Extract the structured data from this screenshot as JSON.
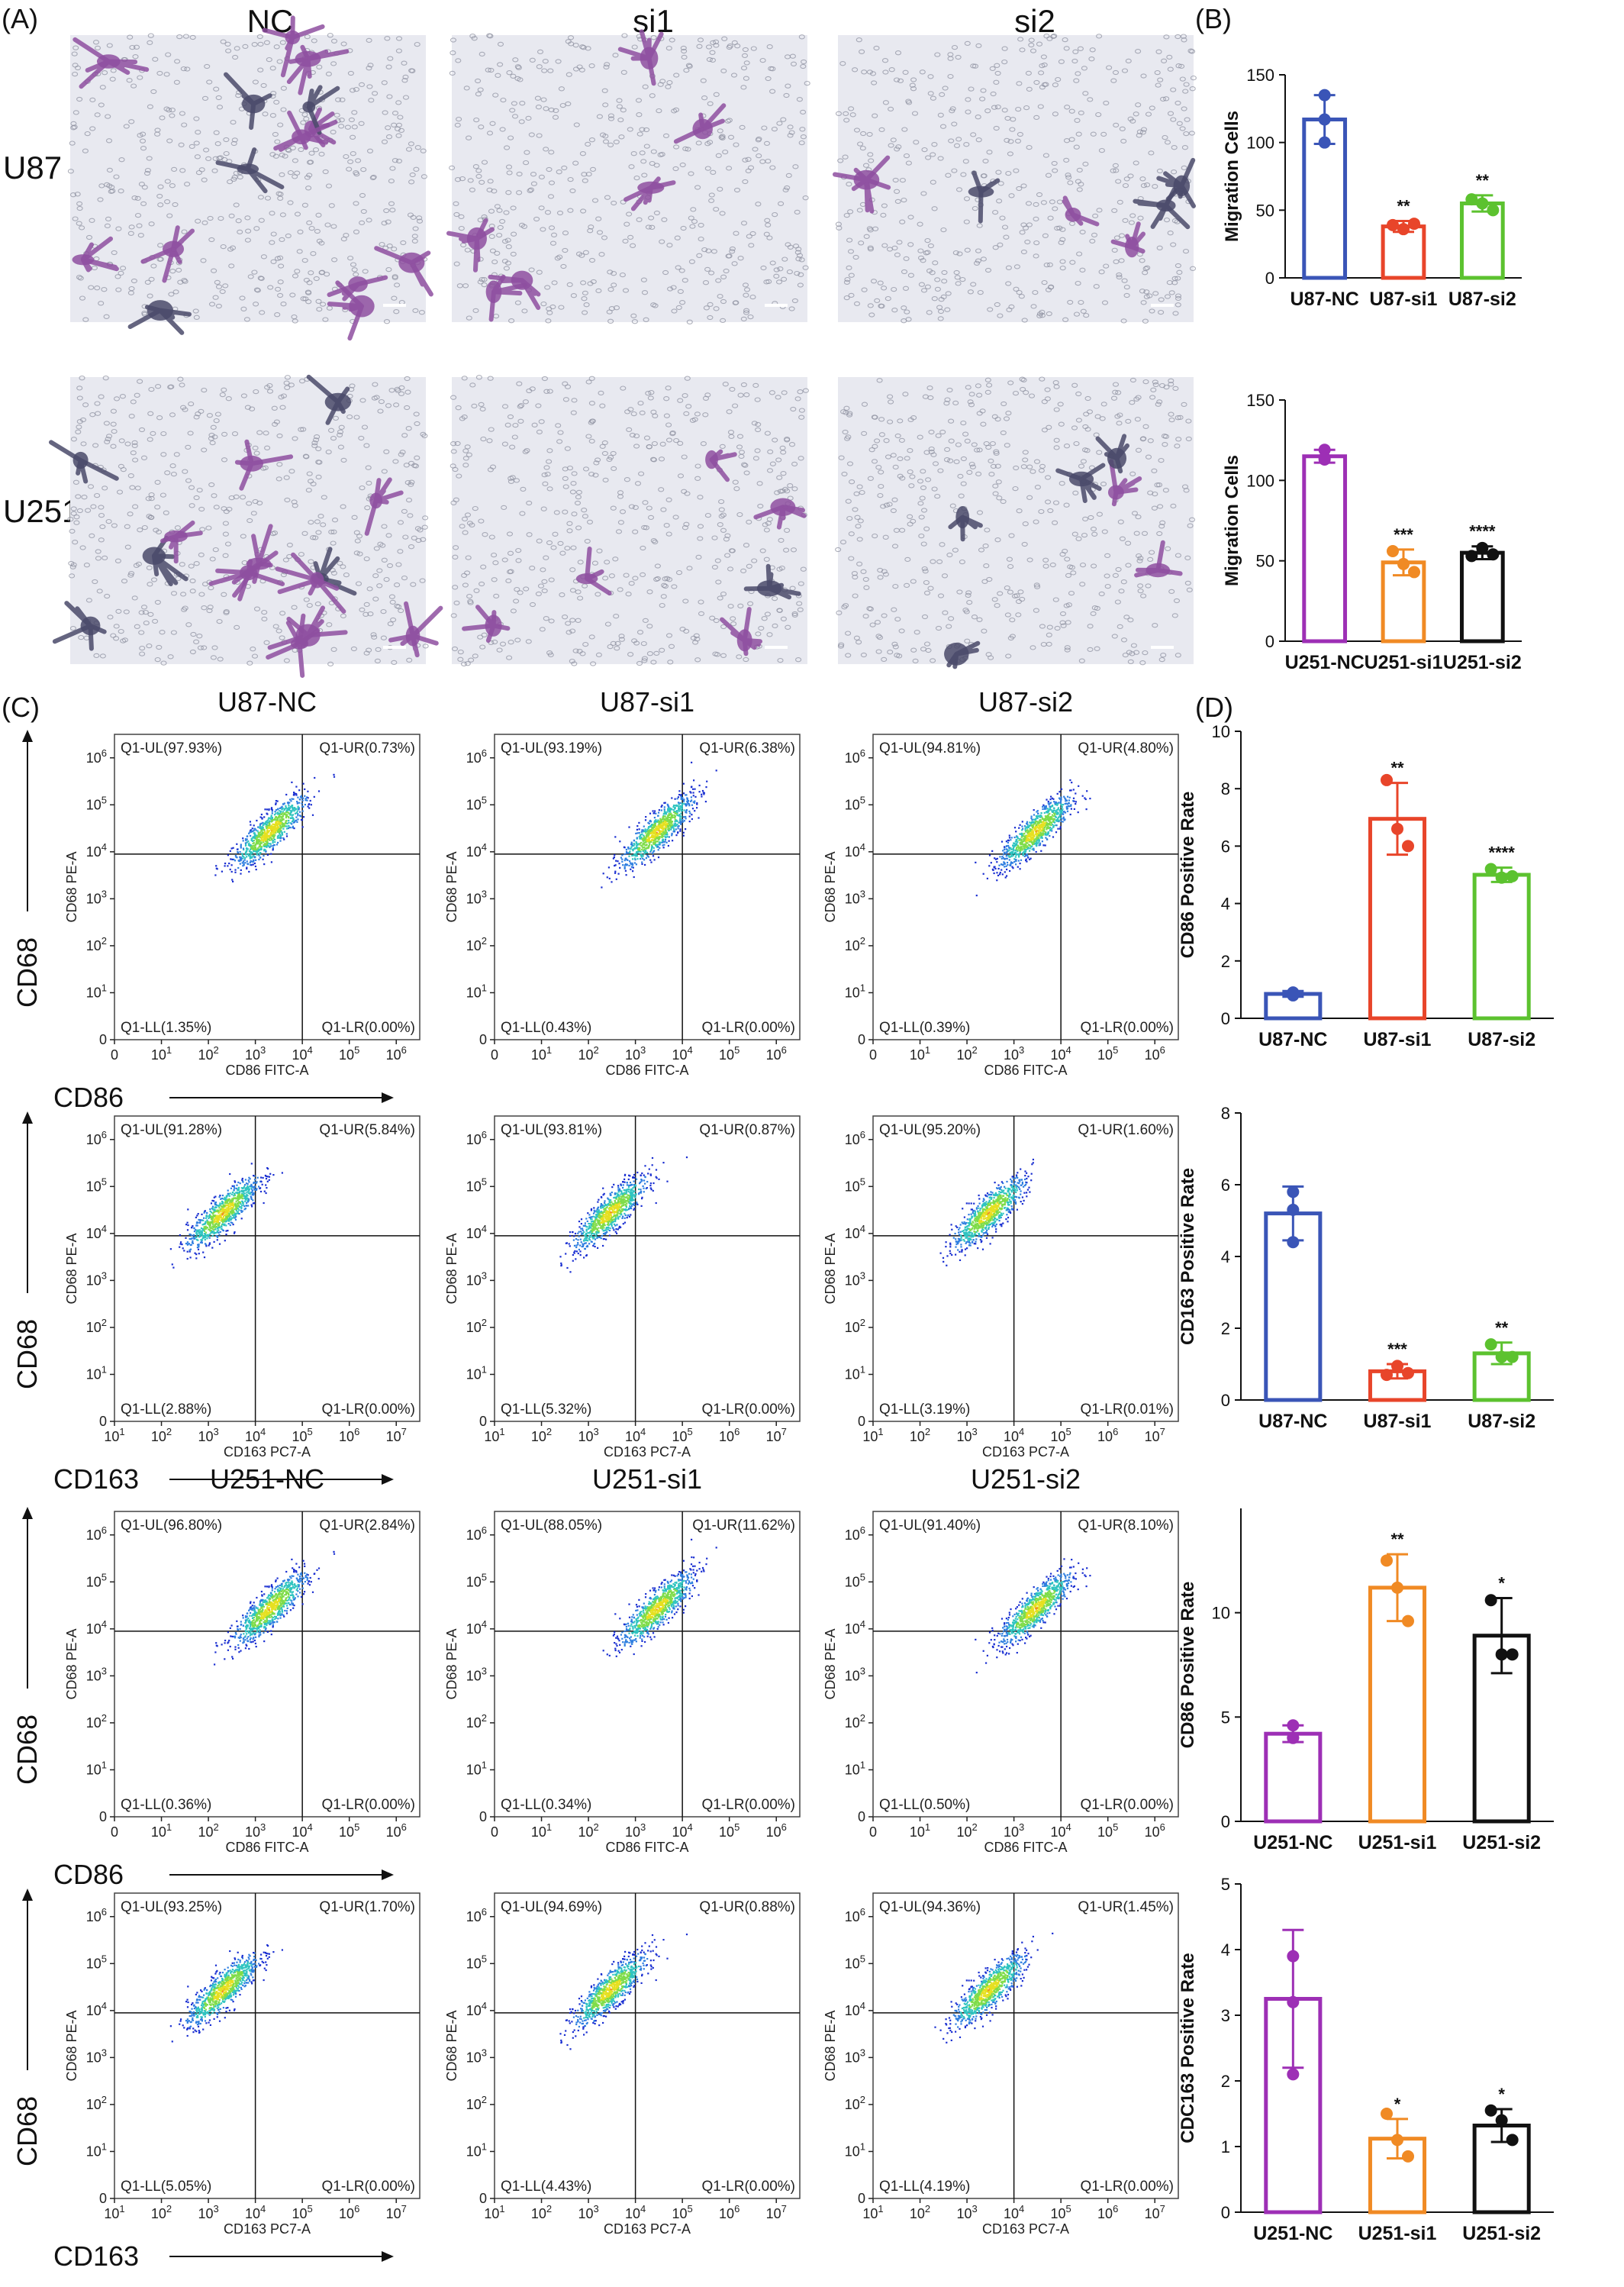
{
  "panel_labels": {
    "a": "(A)",
    "b": "(B)",
    "c": "(C)",
    "d": "(D)"
  },
  "panel_a": {
    "columns": [
      "NC",
      "si1",
      "si2"
    ],
    "rows": [
      "U87",
      "U251"
    ]
  },
  "flow": {
    "group_titles": [
      [
        "U87-NC",
        "U87-si1",
        "U87-si2"
      ],
      [
        "U251-NC",
        "U251-si1",
        "U251-si2"
      ]
    ],
    "y_marker": "CD68",
    "y_channel": "CD68 PE-A",
    "blocks": [
      {
        "marker": "CD86",
        "channel": "CD86 FITC-A",
        "xmin_exp": 0,
        "xmax_exp": 6,
        "quads": [
          {
            "ul": "Q1-UL(97.93%)",
            "ur": "Q1-UR(0.73%)",
            "ll": "Q1-LL(1.35%)",
            "lr": "Q1-LR(0.00%)"
          },
          {
            "ul": "Q1-UL(93.19%)",
            "ur": "Q1-UR(6.38%)",
            "ll": "Q1-LL(0.43%)",
            "lr": "Q1-LR(0.00%)"
          },
          {
            "ul": "Q1-UL(94.81%)",
            "ur": "Q1-UR(4.80%)",
            "ll": "Q1-LL(0.39%)",
            "lr": "Q1-LR(0.00%)"
          }
        ]
      },
      {
        "marker": "CD163",
        "channel": "CD163 PC7-A",
        "xmin_exp": 1,
        "xmax_exp": 7,
        "quads": [
          {
            "ul": "Q1-UL(91.28%)",
            "ur": "Q1-UR(5.84%)",
            "ll": "Q1-LL(2.88%)",
            "lr": "Q1-LR(0.00%)"
          },
          {
            "ul": "Q1-UL(93.81%)",
            "ur": "Q1-UR(0.87%)",
            "ll": "Q1-LL(5.32%)",
            "lr": "Q1-LR(0.00%)"
          },
          {
            "ul": "Q1-UL(95.20%)",
            "ur": "Q1-UR(1.60%)",
            "ll": "Q1-LL(3.19%)",
            "lr": "Q1-LR(0.01%)"
          }
        ]
      },
      {
        "marker": "CD86",
        "channel": "CD86 FITC-A",
        "xmin_exp": 0,
        "xmax_exp": 6,
        "quads": [
          {
            "ul": "Q1-UL(96.80%)",
            "ur": "Q1-UR(2.84%)",
            "ll": "Q1-LL(0.36%)",
            "lr": "Q1-LR(0.00%)"
          },
          {
            "ul": "Q1-UL(88.05%)",
            "ur": "Q1-UR(11.62%)",
            "ll": "Q1-LL(0.34%)",
            "lr": "Q1-LR(0.00%)"
          },
          {
            "ul": "Q1-UL(91.40%)",
            "ur": "Q1-UR(8.10%)",
            "ll": "Q1-LL(0.50%)",
            "lr": "Q1-LR(0.00%)"
          }
        ]
      },
      {
        "marker": "CD163",
        "channel": "CD163 PC7-A",
        "xmin_exp": 1,
        "xmax_exp": 7,
        "quads": [
          {
            "ul": "Q1-UL(93.25%)",
            "ur": "Q1-UR(1.70%)",
            "ll": "Q1-LL(5.05%)",
            "lr": "Q1-LR(0.00%)"
          },
          {
            "ul": "Q1-UL(94.69%)",
            "ur": "Q1-UR(0.88%)",
            "ll": "Q1-LL(4.43%)",
            "lr": "Q1-LR(0.00%)"
          },
          {
            "ul": "Q1-UL(94.36%)",
            "ur": "Q1-UR(1.45%)",
            "ll": "Q1-LL(4.19%)",
            "lr": "Q1-LR(0.00%)"
          }
        ]
      }
    ]
  },
  "chart_data": [
    {
      "type": "bar",
      "ylabel": "Migration Cells",
      "ylim": [
        0,
        150
      ],
      "yticks": [
        0,
        50,
        100,
        150
      ],
      "categories": [
        "U87-NC",
        "U87-si1",
        "U87-si2"
      ],
      "values": [
        117,
        38,
        55
      ],
      "errors": [
        18,
        4,
        6
      ],
      "points": [
        [
          135,
          117,
          100
        ],
        [
          39,
          36,
          40
        ],
        [
          58,
          55,
          50
        ]
      ],
      "sig": [
        "",
        "**",
        "**"
      ],
      "colors": [
        "#3a55b7",
        "#e8452a",
        "#5cc22f"
      ]
    },
    {
      "type": "bar",
      "ylabel": "Migration Cells",
      "ylim": [
        0,
        150
      ],
      "yticks": [
        0,
        50,
        100,
        150
      ],
      "categories": [
        "U251-NC",
        "U251-si1",
        "U251-si2"
      ],
      "values": [
        115,
        49,
        55
      ],
      "errors": [
        4,
        8,
        4
      ],
      "points": [
        [
          119,
          114,
          113
        ],
        [
          56,
          48,
          43
        ],
        [
          53,
          58,
          54
        ]
      ],
      "sig": [
        "",
        "***",
        "****"
      ],
      "colors": [
        "#9d2fb5",
        "#f08a24",
        "#111111"
      ]
    },
    {
      "type": "bar",
      "ylabel": "CD86 Positive Rate",
      "ylim": [
        0,
        10
      ],
      "yticks": [
        0,
        2,
        4,
        6,
        8,
        10
      ],
      "categories": [
        "U87-NC",
        "U87-si1",
        "U87-si2"
      ],
      "values": [
        0.85,
        6.95,
        5.0
      ],
      "errors": [
        0.1,
        1.25,
        0.25
      ],
      "points": [
        [
          0.8,
          0.85,
          0.9
        ],
        [
          8.3,
          6.6,
          6.0
        ],
        [
          5.2,
          4.9,
          4.95
        ]
      ],
      "sig": [
        "",
        "**",
        "****"
      ],
      "colors": [
        "#3a55b7",
        "#e8452a",
        "#5cc22f"
      ]
    },
    {
      "type": "bar",
      "ylabel": "CD163 Positive Rate",
      "ylim": [
        0,
        8
      ],
      "yticks": [
        0,
        2,
        4,
        6,
        8
      ],
      "categories": [
        "U87-NC",
        "U87-si1",
        "U87-si2"
      ],
      "values": [
        5.2,
        0.8,
        1.3
      ],
      "errors": [
        0.75,
        0.2,
        0.3
      ],
      "points": [
        [
          5.8,
          4.4,
          5.3
        ],
        [
          0.7,
          0.95,
          0.75
        ],
        [
          1.55,
          1.2,
          1.2
        ]
      ],
      "sig": [
        "",
        "***",
        "**"
      ],
      "colors": [
        "#3a55b7",
        "#e8452a",
        "#5cc22f"
      ]
    },
    {
      "type": "bar",
      "ylabel": "CD86 Positive Rate",
      "ylim": [
        0,
        15
      ],
      "yticks": [
        0,
        5,
        10
      ],
      "categories": [
        "U251-NC",
        "U251-si1",
        "U251-si2"
      ],
      "values": [
        4.2,
        11.2,
        8.9
      ],
      "errors": [
        0.4,
        1.6,
        1.8
      ],
      "points": [
        [
          4.6,
          4.0,
          4.0
        ],
        [
          12.5,
          11.2,
          9.6
        ],
        [
          10.6,
          8.0,
          8.0
        ]
      ],
      "sig": [
        "",
        "**",
        "*"
      ],
      "colors": [
        "#9d2fb5",
        "#f08a24",
        "#111111"
      ]
    },
    {
      "type": "bar",
      "ylabel": "CDC163 Positive Rate",
      "ylim": [
        0,
        5
      ],
      "yticks": [
        0,
        1,
        2,
        3,
        4,
        5
      ],
      "categories": [
        "U251-NC",
        "U251-si1",
        "U251-si2"
      ],
      "values": [
        3.25,
        1.12,
        1.32
      ],
      "errors": [
        1.05,
        0.3,
        0.25
      ],
      "points": [
        [
          3.9,
          3.2,
          2.1
        ],
        [
          1.5,
          1.1,
          0.85
        ],
        [
          1.55,
          1.4,
          1.1
        ]
      ],
      "sig": [
        "",
        "*",
        "*"
      ],
      "colors": [
        "#9d2fb5",
        "#f08a24",
        "#111111"
      ]
    }
  ]
}
